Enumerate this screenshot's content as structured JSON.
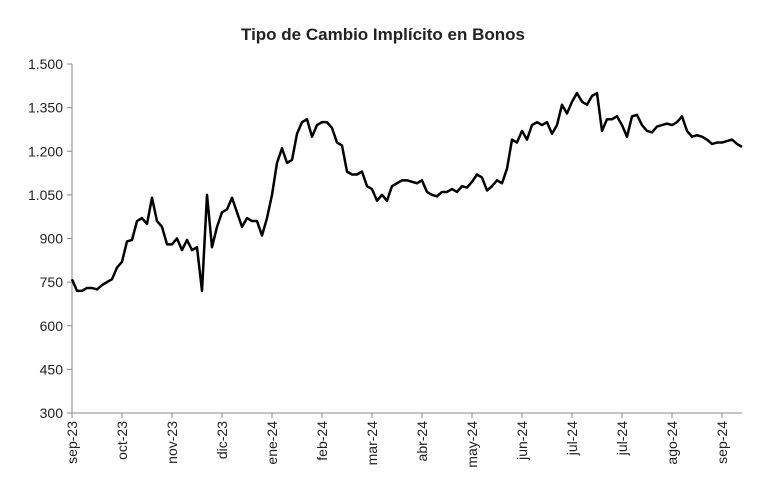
{
  "chart_data": {
    "type": "line",
    "title": "Tipo de Cambio Implícito en Bonos",
    "categories": [
      "sep-23",
      null,
      null,
      null,
      null,
      null,
      null,
      null,
      null,
      null,
      "oct-23",
      null,
      null,
      null,
      null,
      null,
      null,
      null,
      null,
      null,
      "nov-23",
      null,
      null,
      null,
      null,
      null,
      null,
      null,
      null,
      null,
      "dic-23",
      null,
      null,
      null,
      null,
      null,
      null,
      null,
      null,
      null,
      "ene-24",
      null,
      null,
      null,
      null,
      null,
      null,
      null,
      null,
      null,
      "feb-24",
      null,
      null,
      null,
      null,
      null,
      null,
      null,
      null,
      null,
      "mar-24",
      null,
      null,
      null,
      null,
      null,
      null,
      null,
      null,
      null,
      "abr-24",
      null,
      null,
      null,
      null,
      null,
      null,
      null,
      null,
      null,
      "may-24",
      null,
      null,
      null,
      null,
      null,
      null,
      null,
      null,
      null,
      "jun-24",
      null,
      null,
      null,
      null,
      null,
      null,
      null,
      null,
      null,
      "jul-24",
      null,
      null,
      null,
      null,
      null,
      null,
      null,
      null,
      null,
      "jul-24",
      null,
      null,
      null,
      null,
      null,
      null,
      null,
      null,
      null,
      "ago-24",
      null,
      null,
      null,
      null,
      null,
      null,
      null,
      null,
      null,
      "sep-24",
      null,
      null,
      null,
      null
    ],
    "series": [
      {
        "color": "#000000",
        "values": [
          760,
          720,
          720,
          730,
          730,
          725,
          740,
          750,
          760,
          800,
          820,
          890,
          895,
          960,
          970,
          950,
          1040,
          960,
          940,
          880,
          880,
          900,
          860,
          895,
          860,
          870,
          720,
          1050,
          870,
          940,
          990,
          1000,
          1040,
          990,
          940,
          970,
          960,
          960,
          910,
          970,
          1050,
          1160,
          1210,
          1160,
          1170,
          1260,
          1300,
          1310,
          1250,
          1290,
          1300,
          1300,
          1280,
          1230,
          1220,
          1130,
          1120,
          1120,
          1130,
          1080,
          1070,
          1030,
          1050,
          1030,
          1080,
          1090,
          1100,
          1100,
          1095,
          1090,
          1100,
          1060,
          1050,
          1045,
          1060,
          1060,
          1070,
          1060,
          1080,
          1075,
          1095,
          1120,
          1110,
          1065,
          1080,
          1100,
          1090,
          1140,
          1240,
          1230,
          1270,
          1240,
          1290,
          1300,
          1290,
          1300,
          1260,
          1290,
          1360,
          1330,
          1370,
          1400,
          1370,
          1360,
          1390,
          1400,
          1270,
          1310,
          1310,
          1320,
          1290,
          1250,
          1320,
          1325,
          1290,
          1270,
          1265,
          1285,
          1290,
          1295,
          1290,
          1300,
          1320,
          1270,
          1250,
          1255,
          1250,
          1240,
          1225,
          1230,
          1230,
          1235,
          1240,
          1225,
          1215
        ]
      }
    ],
    "ylim": [
      300,
      1500
    ],
    "yticks": [
      300,
      450,
      600,
      750,
      900,
      {
        "value": 1050,
        "label": "1.050"
      },
      {
        "value": 1200,
        "label": "1.200"
      },
      {
        "value": 1350,
        "label": "1.350"
      },
      {
        "value": 1500,
        "label": "1.500"
      }
    ]
  }
}
